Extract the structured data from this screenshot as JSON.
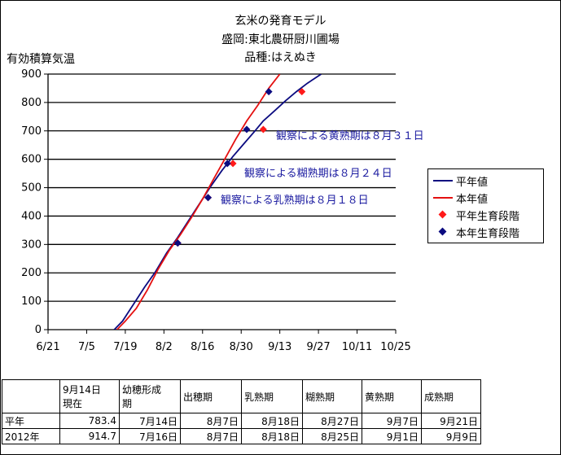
{
  "title_lines": [
    "玄米の発育モデル",
    "盛岡:東北農研厨川圃場",
    "品種:はえぬき"
  ],
  "y_axis_label": "有効積算気温",
  "legend": [
    {
      "label": "平年値",
      "kind": "line",
      "color": "#0b0b80"
    },
    {
      "label": "本年値",
      "kind": "line",
      "color": "#e41010"
    },
    {
      "label": "平年生育段階",
      "kind": "marker",
      "color": "#ff1a1a"
    },
    {
      "label": "本年生育段階",
      "kind": "marker",
      "color": "#0b0b80"
    }
  ],
  "annotations": [
    "観察による黄熟期は８月３１日",
    "観察による糊熟期は８月２４日",
    "観察による乳熟期は８月１８日"
  ],
  "chart_data": {
    "type": "line",
    "title": "玄米の発育モデル",
    "subtitle": "盛岡:東北農研厨川圃場 / 品種:はえぬき",
    "ylabel": "有効積算気温",
    "xlabel": "",
    "x_ticks": [
      "6/21",
      "7/5",
      "7/19",
      "8/2",
      "8/16",
      "8/30",
      "9/13",
      "9/27",
      "10/11",
      "10/25"
    ],
    "xlim": [
      "6/21",
      "10/25"
    ],
    "ylim": [
      0,
      900
    ],
    "y_ticks": [
      0,
      100,
      200,
      300,
      400,
      500,
      600,
      700,
      800,
      900
    ],
    "grid": "horizontal",
    "legend_position": "right",
    "series": [
      {
        "name": "平年値",
        "color": "#0b0b80",
        "points": [
          [
            "7/15",
            0
          ],
          [
            "7/18",
            30
          ],
          [
            "7/22",
            90
          ],
          [
            "7/26",
            150
          ],
          [
            "7/30",
            205
          ],
          [
            "8/3",
            270
          ],
          [
            "8/7",
            325
          ],
          [
            "8/11",
            385
          ],
          [
            "8/15",
            445
          ],
          [
            "8/19",
            505
          ],
          [
            "8/23",
            560
          ],
          [
            "8/27",
            610
          ],
          [
            "8/31",
            655
          ],
          [
            "9/4",
            700
          ],
          [
            "9/7",
            735
          ],
          [
            "9/11",
            770
          ],
          [
            "9/15",
            805
          ],
          [
            "9/19",
            838
          ],
          [
            "9/23",
            868
          ],
          [
            "9/28",
            900
          ]
        ]
      },
      {
        "name": "本年値",
        "color": "#e41010",
        "points": [
          [
            "7/16",
            0
          ],
          [
            "7/19",
            30
          ],
          [
            "7/23",
            75
          ],
          [
            "7/27",
            140
          ],
          [
            "7/31",
            215
          ],
          [
            "8/4",
            280
          ],
          [
            "8/8",
            335
          ],
          [
            "8/12",
            395
          ],
          [
            "8/16",
            460
          ],
          [
            "8/20",
            530
          ],
          [
            "8/24",
            600
          ],
          [
            "8/28",
            670
          ],
          [
            "9/1",
            735
          ],
          [
            "9/5",
            790
          ],
          [
            "9/9",
            850
          ],
          [
            "9/13",
            900
          ]
        ]
      },
      {
        "name": "平年生育段階",
        "color": "#ff1a1a",
        "points": [
          [
            "8/7",
            305
          ],
          [
            "8/18",
            465
          ],
          [
            "8/27",
            585
          ],
          [
            "9/7",
            705
          ],
          [
            "9/21",
            838
          ]
        ]
      },
      {
        "name": "本年生育段階",
        "color": "#0b0b80",
        "points": [
          [
            "8/7",
            305
          ],
          [
            "8/18",
            465
          ],
          [
            "8/25",
            585
          ],
          [
            "9/1",
            705
          ],
          [
            "9/9",
            838
          ]
        ]
      }
    ]
  },
  "table": {
    "headers": [
      "",
      "9月14日\n現在",
      "幼穂形成\n期",
      "出穂期",
      "乳熟期",
      "糊熟期",
      "黄熟期",
      "成熟期"
    ],
    "rows": [
      [
        "平年",
        "783.4",
        "7月14日",
        "8月7日",
        "8月18日",
        "8月27日",
        "9月7日",
        "9月21日"
      ],
      [
        "2012年",
        "914.7",
        "7月16日",
        "8月7日",
        "8月18日",
        "8月25日",
        "9月1日",
        "9月9日"
      ]
    ]
  }
}
